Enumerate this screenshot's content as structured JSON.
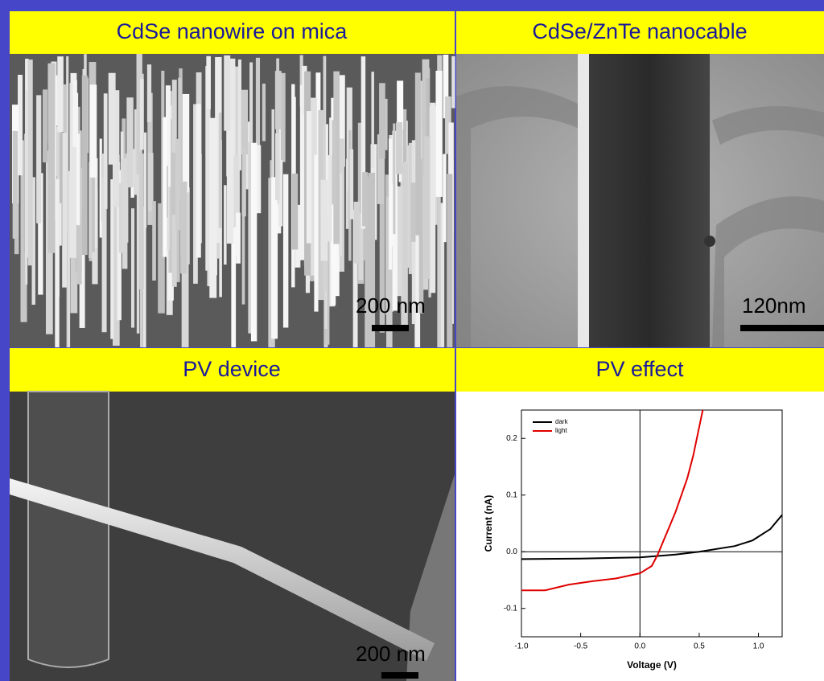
{
  "panels": [
    {
      "title": "CdSe nanowire on mica",
      "scale_label": "200 nm"
    },
    {
      "title": "CdSe/ZnTe nanocable",
      "scale_label": "120nm"
    },
    {
      "title": "PV device",
      "scale_label": "200 nm"
    }
  ],
  "chart_data": {
    "type": "line",
    "title": "PV effect",
    "x_label": "Voltage (V)",
    "y_label": "Current (nA)",
    "xlim": [
      -1.0,
      1.2
    ],
    "ylim": [
      -0.15,
      0.25
    ],
    "xticks": [
      {
        "value": -1.0,
        "label": "-1.0"
      },
      -0.5,
      {
        "value": 0,
        "label": "0.0"
      },
      0.5,
      {
        "value": 1.0,
        "label": "1.0"
      }
    ],
    "yticks": [
      -0.1,
      {
        "value": 0,
        "label": "0.0"
      },
      0.1,
      0.2
    ],
    "legend": "upper left",
    "series": [
      {
        "name": "dark",
        "color": "#000000",
        "x": [
          -1.0,
          -0.5,
          0,
          0.3,
          0.5,
          0.8,
          0.95,
          1.1,
          1.2
        ],
        "values": [
          -0.013,
          -0.012,
          -0.01,
          -0.005,
          0.0,
          0.01,
          0.02,
          0.04,
          0.065
        ]
      },
      {
        "name": "light",
        "color": "#e00000",
        "x": [
          -1.0,
          -0.8,
          -0.6,
          -0.4,
          -0.2,
          0,
          0.1,
          0.15,
          0.2,
          0.3,
          0.4,
          0.45,
          0.5,
          0.53
        ],
        "values": [
          -0.068,
          -0.068,
          -0.058,
          -0.052,
          -0.047,
          -0.038,
          -0.025,
          -0.005,
          0.02,
          0.07,
          0.13,
          0.17,
          0.22,
          0.25
        ]
      }
    ]
  }
}
